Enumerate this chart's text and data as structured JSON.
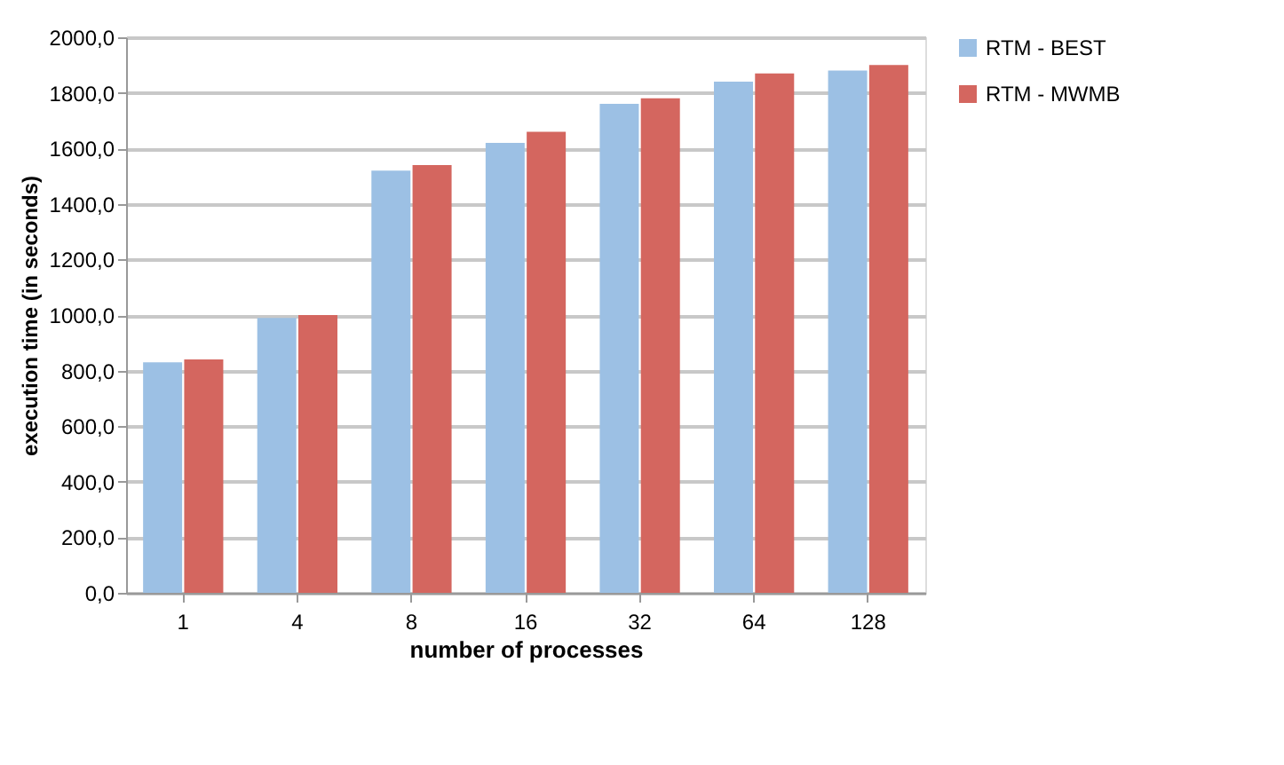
{
  "chart_data": {
    "type": "bar",
    "xlabel": "number of processes",
    "ylabel": "execution time (in seconds)",
    "categories": [
      "1",
      "4",
      "8",
      "16",
      "32",
      "64",
      "128"
    ],
    "series": [
      {
        "name": "RTM - BEST",
        "color": "#9cc0e4",
        "values": [
          830,
          990,
          1520,
          1620,
          1760,
          1840,
          1880
        ]
      },
      {
        "name": "RTM - MWMB",
        "color": "#d4665f",
        "values": [
          840,
          1000,
          1540,
          1660,
          1780,
          1870,
          1900
        ]
      }
    ],
    "ylim": [
      0,
      2000
    ],
    "yticks": [
      {
        "value": 0,
        "label": "0,0"
      },
      {
        "value": 200,
        "label": "200,0"
      },
      {
        "value": 400,
        "label": "400,0"
      },
      {
        "value": 600,
        "label": "600,0"
      },
      {
        "value": 800,
        "label": "800,0"
      },
      {
        "value": 1000,
        "label": "1000,0"
      },
      {
        "value": 1200,
        "label": "1200,0"
      },
      {
        "value": 1400,
        "label": "1400,0"
      },
      {
        "value": 1600,
        "label": "1600,0"
      },
      {
        "value": 1800,
        "label": "1800,0"
      },
      {
        "value": 2000,
        "label": "2000,0"
      }
    ],
    "grid": "y",
    "legend": "right"
  }
}
